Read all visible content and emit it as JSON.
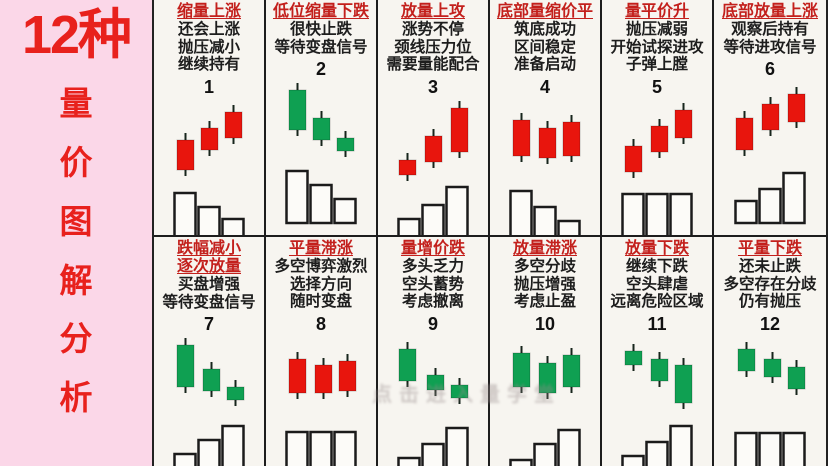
{
  "sidebar": {
    "title": "12种",
    "vertical_chars": [
      "量",
      "价",
      "图",
      "解",
      "分",
      "析"
    ]
  },
  "watermark": {
    "text": "点击进入量学堂"
  },
  "palette": {
    "red": "#e8150d",
    "green": "#0fa052",
    "title_red": "#c3201c",
    "ink": "#1d1d1d",
    "pink": "#fbd7e8",
    "volume_fill": "#fcfbf8",
    "volume_stroke": "#1b1b1b"
  },
  "chart_data": [
    {
      "type": "candlestick+volume",
      "num": "1",
      "title_lines": [
        "缩量上涨"
      ],
      "desc_lines": [
        "还会上涨",
        "抛压减小",
        "继续持有"
      ],
      "color": "red",
      "trend": "price-up-volume-down",
      "candles": [
        [
          20,
          40,
          30
        ],
        [
          44,
          28,
          22
        ],
        [
          68,
          12,
          26
        ]
      ],
      "vols": [
        48,
        34,
        22
      ]
    },
    {
      "type": "candlestick+volume",
      "num": "2",
      "title_lines": [
        "低位缩量下跌"
      ],
      "desc_lines": [
        "很快止跌",
        "等待变盘信号"
      ],
      "color": "green",
      "trend": "price-down-volume-down",
      "candles": [
        [
          20,
          8,
          40
        ],
        [
          44,
          36,
          22
        ],
        [
          68,
          56,
          13
        ]
      ],
      "vols": [
        52,
        38,
        24
      ]
    },
    {
      "type": "candlestick+volume",
      "num": "3",
      "title_lines": [
        "放量上攻"
      ],
      "desc_lines": [
        "涨势不停",
        "颈线压力位",
        "需要量能配合"
      ],
      "color": "red",
      "trend": "price-up-volume-up",
      "candles": [
        [
          18,
          60,
          15
        ],
        [
          44,
          36,
          26
        ],
        [
          70,
          8,
          44
        ]
      ],
      "vols": [
        22,
        36,
        54
      ]
    },
    {
      "type": "candlestick+volume",
      "num": "4",
      "title_lines": [
        "底部量缩价平"
      ],
      "desc_lines": [
        "筑底成功",
        "区间稳定",
        "准备启动"
      ],
      "color": "red",
      "trend": "price-flat-volume-down",
      "candles": [
        [
          20,
          20,
          36
        ],
        [
          46,
          28,
          30
        ],
        [
          70,
          22,
          34
        ]
      ],
      "vols": [
        50,
        34,
        20
      ]
    },
    {
      "type": "candlestick+volume",
      "num": "5",
      "title_lines": [
        "量平价升"
      ],
      "desc_lines": [
        "抛压减弱",
        "开始试探进攻",
        "子弹上膛"
      ],
      "color": "red",
      "trend": "price-up-volume-flat",
      "candles": [
        [
          20,
          46,
          26
        ],
        [
          46,
          26,
          26
        ],
        [
          70,
          10,
          28
        ]
      ],
      "vols": [
        47,
        47,
        47
      ]
    },
    {
      "type": "candlestick+volume",
      "num": "6",
      "title_lines": [
        "底部放量上涨"
      ],
      "desc_lines": [
        "观察后持有",
        "等待进攻信号"
      ],
      "color": "red",
      "trend": "price-up-volume-up",
      "candles": [
        [
          18,
          36,
          32
        ],
        [
          44,
          22,
          26
        ],
        [
          70,
          12,
          28
        ]
      ],
      "vols": [
        22,
        34,
        50
      ]
    },
    {
      "type": "candlestick+volume",
      "num": "7",
      "title_lines": [
        "跌幅减小",
        "逐次放量"
      ],
      "desc_lines": [
        "买盘增强",
        "等待变盘信号"
      ],
      "color": "green",
      "trend": "price-down-volume-up",
      "candles": [
        [
          20,
          8,
          42
        ],
        [
          46,
          32,
          22
        ],
        [
          70,
          50,
          13
        ]
      ],
      "vols": [
        24,
        38,
        52
      ]
    },
    {
      "type": "candlestick+volume",
      "num": "8",
      "title_lines": [
        "平量滞涨"
      ],
      "desc_lines": [
        "多空博弈激烈",
        "选择方向",
        "随时变盘"
      ],
      "color": "red",
      "trend": "price-flat-volume-flat",
      "candles": [
        [
          20,
          22,
          34
        ],
        [
          46,
          28,
          28
        ],
        [
          70,
          24,
          30
        ]
      ],
      "vols": [
        46,
        46,
        46
      ]
    },
    {
      "type": "candlestick+volume",
      "num": "9",
      "title_lines": [
        "量增价跌"
      ],
      "desc_lines": [
        "多头乏力",
        "空头蓄势",
        "考虑撤离"
      ],
      "color": "green",
      "trend": "price-down-volume-up",
      "candles": [
        [
          18,
          12,
          32
        ],
        [
          46,
          38,
          15
        ],
        [
          70,
          48,
          13
        ]
      ],
      "vols": [
        20,
        34,
        50
      ]
    },
    {
      "type": "candlestick+volume",
      "num": "10",
      "title_lines": [
        "放量滞涨"
      ],
      "desc_lines": [
        "多空分歧",
        "抛压增强",
        "考虑止盈"
      ],
      "color": "green",
      "trend": "price-flat-volume-up",
      "candles": [
        [
          20,
          16,
          34
        ],
        [
          46,
          26,
          30
        ],
        [
          70,
          18,
          32
        ]
      ],
      "vols": [
        18,
        34,
        48
      ]
    },
    {
      "type": "candlestick+volume",
      "num": "11",
      "title_lines": [
        "放量下跌"
      ],
      "desc_lines": [
        "继续下跌",
        "空头肆虐",
        "远离危险区域"
      ],
      "color": "green",
      "trend": "price-down-volume-up",
      "candles": [
        [
          20,
          14,
          14
        ],
        [
          46,
          22,
          22
        ],
        [
          70,
          28,
          38
        ]
      ],
      "vols": [
        22,
        36,
        52
      ]
    },
    {
      "type": "candlestick+volume",
      "num": "12",
      "title_lines": [
        "平量下跌"
      ],
      "desc_lines": [
        "还未止跌",
        "多空存在分歧",
        "仍有抛压"
      ],
      "color": "green",
      "trend": "price-down-volume-flat",
      "candles": [
        [
          20,
          12,
          22
        ],
        [
          46,
          22,
          18
        ],
        [
          70,
          30,
          22
        ]
      ],
      "vols": [
        45,
        45,
        45
      ]
    }
  ]
}
